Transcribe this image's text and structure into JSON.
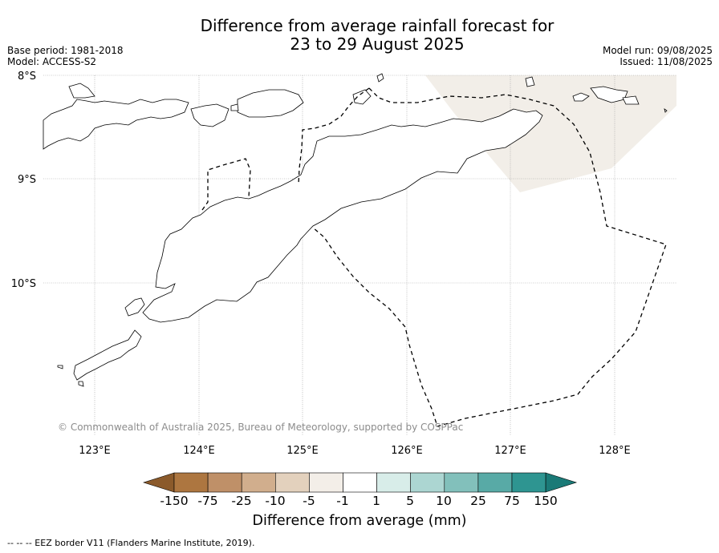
{
  "title": {
    "line1": "Difference from average rainfall forecast for",
    "line2": "23 to 29 August 2025"
  },
  "meta": {
    "base_period": "Base period: 1981-2018",
    "model": "Model: ACCESS-S2",
    "model_run": "Model run: 09/08/2025",
    "issued": "Issued: 11/08/2025"
  },
  "map": {
    "lat_labels": [
      "8°S",
      "9°S",
      "10°S"
    ],
    "lon_labels": [
      "123°E",
      "124°E",
      "125°E",
      "126°E",
      "127°E",
      "128°E"
    ],
    "copyright": "© Commonwealth of Australia 2025, Bureau of Meteorology, supported by COSPPac",
    "land_color": "#ffffff",
    "coastline_color": "#000000",
    "eez_style": "dashed",
    "shaded_region_category": "-5 to -1",
    "shaded_region_color": "#f2eee8"
  },
  "colorbar": {
    "labels": [
      "-150",
      "-75",
      "-25",
      "-10",
      "-5",
      "-1",
      "1",
      "5",
      "10",
      "25",
      "75",
      "150"
    ],
    "colors": [
      "#8b5a2b",
      "#ad7640",
      "#bf9068",
      "#d1ae8d",
      "#e3d1bd",
      "#f3eee8",
      "#ffffff",
      "#d8ede9",
      "#acd6d2",
      "#82c0bb",
      "#58aaa6",
      "#2e9591",
      "#1a7a77"
    ],
    "title": "Difference from average (mm)"
  },
  "footnote": "--  --  -- EEZ border V11 (Flanders Marine Institute, 2019)."
}
